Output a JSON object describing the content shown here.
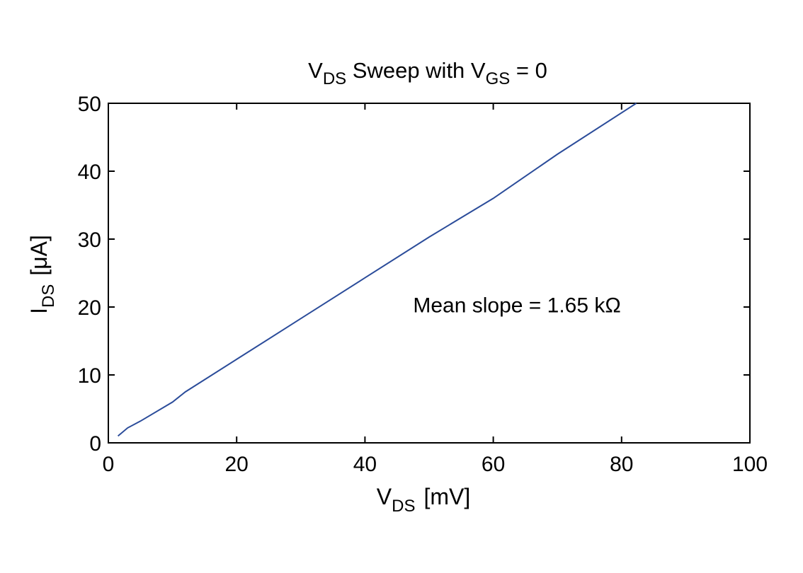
{
  "chart_data": {
    "type": "line",
    "title": {
      "v": "V",
      "v_sub": "DS",
      "mid": " Sweep with V",
      "gs_sub": "GS",
      "tail": " = 0"
    },
    "xlabel": {
      "main": "V",
      "sub": "DS",
      "unit": "[mV]"
    },
    "ylabel": {
      "main": "I",
      "sub": "DS",
      "unit": "[μA]"
    },
    "xlim": [
      0,
      100
    ],
    "ylim": [
      0,
      50
    ],
    "x_ticks": [
      0,
      20,
      40,
      60,
      80,
      100
    ],
    "y_ticks": [
      0,
      10,
      20,
      30,
      40,
      50
    ],
    "x_tick_labels": [
      "0",
      "20",
      "40",
      "60",
      "80",
      "100"
    ],
    "y_tick_labels": [
      "0",
      "10",
      "20",
      "30",
      "40",
      "50"
    ],
    "grid": false,
    "line_color": "#2b4c9a",
    "series": [
      {
        "x": [
          1.5,
          3,
          5,
          10,
          12,
          20,
          30,
          40,
          50,
          60,
          70,
          82.3
        ],
        "y": [
          1,
          2.2,
          3.2,
          6,
          7.5,
          12.3,
          18.3,
          24.3,
          30.3,
          36,
          42.5,
          50
        ]
      }
    ],
    "annotation": {
      "text": "Mean slope = 1.65 kΩ",
      "x": 47.5,
      "y": 19.2
    }
  }
}
